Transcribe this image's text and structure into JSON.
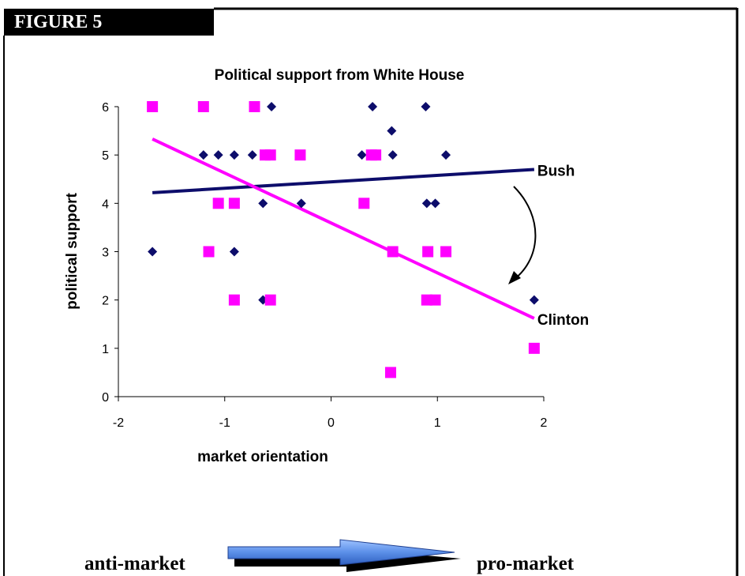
{
  "figure_tag": "FIGURE 5",
  "chart_data": {
    "type": "scatter",
    "title": "Political support from White House",
    "xlabel": "market orientation",
    "ylabel": "political support",
    "xlim": [
      -2,
      2
    ],
    "ylim": [
      0,
      6
    ],
    "x_ticks": [
      -2,
      -1,
      0,
      1,
      2
    ],
    "y_ticks": [
      0,
      1,
      2,
      3,
      4,
      5,
      6
    ],
    "grid": false,
    "series": [
      {
        "marker": "diamond",
        "color": "#0d0d6b",
        "points": [
          {
            "x": -1.68,
            "y": 3
          },
          {
            "x": -1.2,
            "y": 5
          },
          {
            "x": -1.06,
            "y": 5
          },
          {
            "x": -0.91,
            "y": 5
          },
          {
            "x": -0.91,
            "y": 3
          },
          {
            "x": -0.74,
            "y": 5
          },
          {
            "x": -0.64,
            "y": 4
          },
          {
            "x": -0.64,
            "y": 2
          },
          {
            "x": -0.56,
            "y": 6
          },
          {
            "x": -0.28,
            "y": 4
          },
          {
            "x": 0.29,
            "y": 5
          },
          {
            "x": 0.39,
            "y": 6
          },
          {
            "x": 0.57,
            "y": 5.5
          },
          {
            "x": 0.58,
            "y": 5
          },
          {
            "x": 0.89,
            "y": 6
          },
          {
            "x": 0.9,
            "y": 4
          },
          {
            "x": 0.98,
            "y": 4
          },
          {
            "x": 1.08,
            "y": 5
          },
          {
            "x": 1.91,
            "y": 2
          }
        ]
      },
      {
        "marker": "square",
        "color": "#ff00ff",
        "points": [
          {
            "x": -1.68,
            "y": 6
          },
          {
            "x": -1.2,
            "y": 6
          },
          {
            "x": -0.72,
            "y": 6
          },
          {
            "x": -0.62,
            "y": 5
          },
          {
            "x": -0.57,
            "y": 5
          },
          {
            "x": -0.29,
            "y": 5
          },
          {
            "x": 0.38,
            "y": 5
          },
          {
            "x": 0.42,
            "y": 5
          },
          {
            "x": -1.06,
            "y": 4
          },
          {
            "x": -0.91,
            "y": 4
          },
          {
            "x": 0.31,
            "y": 4
          },
          {
            "x": -1.15,
            "y": 3
          },
          {
            "x": 0.58,
            "y": 3
          },
          {
            "x": 0.91,
            "y": 3
          },
          {
            "x": 1.08,
            "y": 3
          },
          {
            "x": -0.91,
            "y": 2
          },
          {
            "x": -0.57,
            "y": 2
          },
          {
            "x": 0.9,
            "y": 2
          },
          {
            "x": 0.98,
            "y": 2
          },
          {
            "x": 1.91,
            "y": 1
          },
          {
            "x": 0.56,
            "y": 0.5
          }
        ]
      }
    ],
    "trendlines": [
      {
        "name": "Bush",
        "color": "#0d0d6b",
        "from": [
          -1.68,
          4.22
        ],
        "to": [
          1.91,
          4.7
        ]
      },
      {
        "name": "Clinton",
        "color": "#ff00ff",
        "from": [
          -1.68,
          5.33
        ],
        "to": [
          1.91,
          1.62
        ]
      }
    ]
  },
  "axis_caption": {
    "left": "anti-market",
    "right": "pro-market"
  }
}
